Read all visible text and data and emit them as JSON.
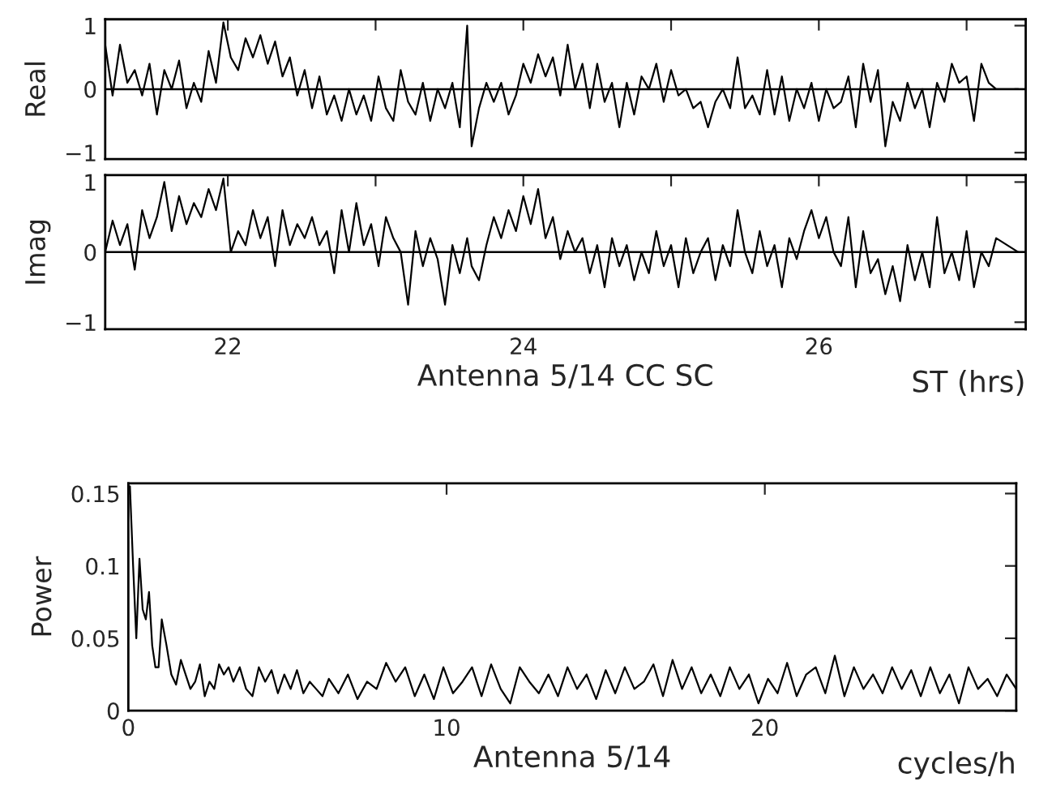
{
  "chart_data": [
    {
      "type": "line",
      "ylabel": "Real",
      "xlim": [
        21.17,
        27.4
      ],
      "ylim": [
        -1.1,
        1.1
      ],
      "xticks": [
        {
          "value": 22,
          "label": null
        },
        {
          "value": 23,
          "label": null
        },
        {
          "value": 24,
          "label": null
        },
        {
          "value": 25,
          "label": null
        },
        {
          "value": 26,
          "label": null
        },
        {
          "value": 27,
          "label": null
        }
      ],
      "yticks": [
        {
          "value": -1,
          "label": "−1"
        },
        0,
        1
      ],
      "tick_labels": "y",
      "grid": false,
      "ref_lines": [
        {
          "axis": "y",
          "value": 0,
          "color": "#000000"
        }
      ],
      "series": [
        {
          "color": "#000000",
          "x": [
            21.17,
            21.22,
            21.27,
            21.32,
            21.37,
            21.42,
            21.47,
            21.52,
            21.57,
            21.62,
            21.67,
            21.72,
            21.77,
            21.82,
            21.87,
            21.92,
            21.97,
            22.02,
            22.07,
            22.12,
            22.17,
            22.22,
            22.27,
            22.32,
            22.37,
            22.42,
            22.47,
            22.52,
            22.57,
            22.62,
            22.67,
            22.72,
            22.77,
            22.82,
            22.87,
            22.92,
            22.97,
            23.02,
            23.07,
            23.12,
            23.17,
            23.22,
            23.27,
            23.32,
            23.37,
            23.42,
            23.47,
            23.52,
            23.57,
            23.62,
            23.65,
            23.7,
            23.75,
            23.8,
            23.85,
            23.9,
            23.95,
            24.0,
            24.05,
            24.1,
            24.15,
            24.2,
            24.25,
            24.3,
            24.35,
            24.4,
            24.45,
            24.5,
            24.55,
            24.6,
            24.65,
            24.7,
            24.75,
            24.8,
            24.85,
            24.9,
            24.95,
            25.0,
            25.05,
            25.1,
            25.15,
            25.2,
            25.25,
            25.3,
            25.35,
            25.4,
            25.45,
            25.5,
            25.55,
            25.6,
            25.65,
            25.7,
            25.75,
            25.8,
            25.85,
            25.9,
            25.95,
            26.0,
            26.05,
            26.1,
            26.15,
            26.2,
            26.25,
            26.3,
            26.35,
            26.4,
            26.45,
            26.5,
            26.55,
            26.6,
            26.65,
            26.7,
            26.75,
            26.8,
            26.85,
            26.9,
            26.95,
            27.0,
            27.05,
            27.1,
            27.15,
            27.2,
            27.35
          ],
          "values": [
            0.7,
            -0.1,
            0.7,
            0.1,
            0.3,
            -0.1,
            0.4,
            -0.4,
            0.3,
            0.0,
            0.45,
            -0.3,
            0.1,
            -0.2,
            0.6,
            0.1,
            1.05,
            0.5,
            0.3,
            0.8,
            0.5,
            0.85,
            0.4,
            0.75,
            0.2,
            0.5,
            -0.1,
            0.3,
            -0.3,
            0.2,
            -0.4,
            -0.1,
            -0.5,
            0.0,
            -0.4,
            -0.1,
            -0.5,
            0.2,
            -0.3,
            -0.5,
            0.3,
            -0.2,
            -0.4,
            0.1,
            -0.5,
            0.0,
            -0.3,
            0.1,
            -0.6,
            1.0,
            -0.9,
            -0.3,
            0.1,
            -0.2,
            0.1,
            -0.4,
            -0.1,
            0.4,
            0.1,
            0.55,
            0.2,
            0.5,
            -0.1,
            0.7,
            0.0,
            0.4,
            -0.3,
            0.4,
            -0.2,
            0.1,
            -0.6,
            0.1,
            -0.4,
            0.2,
            0.0,
            0.4,
            -0.2,
            0.3,
            -0.1,
            0.0,
            -0.3,
            -0.2,
            -0.6,
            -0.2,
            0.0,
            -0.3,
            0.5,
            -0.3,
            -0.1,
            -0.4,
            0.3,
            -0.4,
            0.2,
            -0.5,
            0.0,
            -0.3,
            0.1,
            -0.5,
            0.0,
            -0.3,
            -0.2,
            0.2,
            -0.6,
            0.4,
            -0.2,
            0.3,
            -0.9,
            -0.2,
            -0.5,
            0.1,
            -0.3,
            0.0,
            -0.6,
            0.1,
            -0.2,
            0.4,
            0.1,
            0.2,
            -0.5,
            0.4,
            0.1,
            0.0,
            0.0
          ]
        }
      ]
    },
    {
      "type": "line",
      "ylabel": "Imag",
      "xlabel": "Antenna 5/14 CC SC",
      "annotations": [
        "ST (hrs)"
      ],
      "xlim": [
        21.17,
        27.4
      ],
      "ylim": [
        -1.1,
        1.1
      ],
      "xticks": [
        22,
        {
          "value": 23,
          "label": null
        },
        24,
        {
          "value": 25,
          "label": null
        },
        26,
        {
          "value": 27,
          "label": null
        }
      ],
      "yticks": [
        {
          "value": -1,
          "label": "−1"
        },
        0,
        1
      ],
      "grid": false,
      "ref_lines": [
        {
          "axis": "y",
          "value": 0,
          "color": "#000000"
        }
      ],
      "series": [
        {
          "color": "#000000",
          "x": [
            21.17,
            21.22,
            21.27,
            21.32,
            21.37,
            21.42,
            21.47,
            21.52,
            21.57,
            21.62,
            21.67,
            21.72,
            21.77,
            21.82,
            21.87,
            21.92,
            21.97,
            22.02,
            22.07,
            22.12,
            22.17,
            22.22,
            22.27,
            22.32,
            22.37,
            22.42,
            22.47,
            22.52,
            22.57,
            22.62,
            22.67,
            22.72,
            22.77,
            22.82,
            22.87,
            22.92,
            22.97,
            23.02,
            23.07,
            23.12,
            23.17,
            23.22,
            23.27,
            23.32,
            23.37,
            23.42,
            23.47,
            23.52,
            23.57,
            23.62,
            23.65,
            23.7,
            23.75,
            23.8,
            23.85,
            23.9,
            23.95,
            24.0,
            24.05,
            24.1,
            24.15,
            24.2,
            24.25,
            24.3,
            24.35,
            24.4,
            24.45,
            24.5,
            24.55,
            24.6,
            24.65,
            24.7,
            24.75,
            24.8,
            24.85,
            24.9,
            24.95,
            25.0,
            25.05,
            25.1,
            25.15,
            25.2,
            25.25,
            25.3,
            25.35,
            25.4,
            25.45,
            25.5,
            25.55,
            25.6,
            25.65,
            25.7,
            25.75,
            25.8,
            25.85,
            25.9,
            25.95,
            26.0,
            26.05,
            26.1,
            26.15,
            26.2,
            26.25,
            26.3,
            26.35,
            26.4,
            26.45,
            26.5,
            26.55,
            26.6,
            26.65,
            26.7,
            26.75,
            26.8,
            26.85,
            26.9,
            26.95,
            27.0,
            27.05,
            27.1,
            27.15,
            27.2,
            27.35
          ],
          "values": [
            0.0,
            0.45,
            0.1,
            0.4,
            -0.25,
            0.6,
            0.2,
            0.5,
            1.0,
            0.3,
            0.8,
            0.4,
            0.7,
            0.5,
            0.9,
            0.6,
            1.05,
            0.0,
            0.3,
            0.1,
            0.6,
            0.2,
            0.5,
            -0.2,
            0.6,
            0.1,
            0.4,
            0.2,
            0.5,
            0.1,
            0.3,
            -0.3,
            0.6,
            0.0,
            0.7,
            0.1,
            0.4,
            -0.2,
            0.5,
            0.2,
            0.0,
            -0.75,
            0.3,
            -0.2,
            0.2,
            -0.1,
            -0.75,
            0.1,
            -0.3,
            0.2,
            -0.2,
            -0.4,
            0.1,
            0.5,
            0.2,
            0.6,
            0.3,
            0.8,
            0.4,
            0.9,
            0.2,
            0.5,
            -0.1,
            0.3,
            0.0,
            0.2,
            -0.3,
            0.1,
            -0.5,
            0.2,
            -0.2,
            0.1,
            -0.4,
            0.0,
            -0.3,
            0.3,
            -0.2,
            0.1,
            -0.5,
            0.2,
            -0.3,
            0.0,
            0.2,
            -0.4,
            0.1,
            -0.2,
            0.6,
            0.0,
            -0.3,
            0.3,
            -0.2,
            0.1,
            -0.5,
            0.2,
            -0.1,
            0.3,
            0.6,
            0.2,
            0.5,
            0.0,
            -0.2,
            0.5,
            -0.5,
            0.3,
            -0.3,
            -0.1,
            -0.6,
            -0.2,
            -0.7,
            0.1,
            -0.4,
            0.0,
            -0.5,
            0.5,
            -0.3,
            0.0,
            -0.4,
            0.3,
            -0.5,
            0.0,
            -0.2,
            0.2,
            0.0
          ]
        }
      ]
    },
    {
      "type": "line",
      "ylabel": "Power",
      "xlabel": "Antenna 5/14",
      "annotations": [
        "cycles/h"
      ],
      "xlim": [
        0,
        27.9
      ],
      "ylim": [
        0,
        0.157
      ],
      "xticks": [
        0,
        10,
        20
      ],
      "yticks": [
        0,
        0.05,
        0.1,
        0.15
      ],
      "grid": false,
      "series": [
        {
          "color": "#000000",
          "x": [
            0.05,
            0.15,
            0.25,
            0.35,
            0.45,
            0.55,
            0.65,
            0.75,
            0.85,
            0.95,
            1.05,
            1.2,
            1.35,
            1.5,
            1.65,
            1.8,
            1.95,
            2.1,
            2.25,
            2.4,
            2.55,
            2.7,
            2.85,
            3.0,
            3.15,
            3.3,
            3.5,
            3.7,
            3.9,
            4.1,
            4.3,
            4.5,
            4.7,
            4.9,
            5.1,
            5.3,
            5.5,
            5.7,
            5.9,
            6.1,
            6.3,
            6.6,
            6.9,
            7.2,
            7.5,
            7.8,
            8.1,
            8.4,
            8.7,
            9.0,
            9.3,
            9.6,
            9.9,
            10.2,
            10.5,
            10.8,
            11.1,
            11.4,
            11.7,
            12.0,
            12.3,
            12.6,
            12.9,
            13.2,
            13.5,
            13.8,
            14.1,
            14.4,
            14.7,
            15.0,
            15.3,
            15.6,
            15.9,
            16.2,
            16.5,
            16.8,
            17.1,
            17.4,
            17.7,
            18.0,
            18.3,
            18.6,
            18.9,
            19.2,
            19.5,
            19.8,
            20.1,
            20.4,
            20.7,
            21.0,
            21.3,
            21.6,
            21.9,
            22.2,
            22.5,
            22.8,
            23.1,
            23.4,
            23.7,
            24.0,
            24.3,
            24.6,
            24.9,
            25.2,
            25.5,
            25.8,
            26.1,
            26.4,
            26.7,
            27.0,
            27.3,
            27.6,
            27.9
          ],
          "values": [
            0.155,
            0.1,
            0.05,
            0.105,
            0.07,
            0.063,
            0.082,
            0.045,
            0.03,
            0.03,
            0.063,
            0.045,
            0.025,
            0.018,
            0.035,
            0.025,
            0.015,
            0.02,
            0.032,
            0.01,
            0.02,
            0.015,
            0.032,
            0.025,
            0.03,
            0.02,
            0.03,
            0.015,
            0.01,
            0.03,
            0.02,
            0.028,
            0.012,
            0.025,
            0.015,
            0.028,
            0.012,
            0.02,
            0.015,
            0.01,
            0.022,
            0.012,
            0.025,
            0.008,
            0.02,
            0.015,
            0.033,
            0.02,
            0.03,
            0.01,
            0.025,
            0.008,
            0.03,
            0.012,
            0.02,
            0.03,
            0.01,
            0.032,
            0.015,
            0.005,
            0.03,
            0.02,
            0.012,
            0.025,
            0.01,
            0.03,
            0.015,
            0.025,
            0.008,
            0.028,
            0.012,
            0.03,
            0.015,
            0.02,
            0.032,
            0.01,
            0.035,
            0.015,
            0.03,
            0.012,
            0.025,
            0.01,
            0.03,
            0.015,
            0.025,
            0.005,
            0.022,
            0.012,
            0.033,
            0.01,
            0.025,
            0.03,
            0.012,
            0.038,
            0.01,
            0.03,
            0.015,
            0.025,
            0.012,
            0.03,
            0.015,
            0.028,
            0.01,
            0.03,
            0.012,
            0.025,
            0.005,
            0.03,
            0.015,
            0.022,
            0.01,
            0.025,
            0.015
          ]
        }
      ]
    }
  ]
}
